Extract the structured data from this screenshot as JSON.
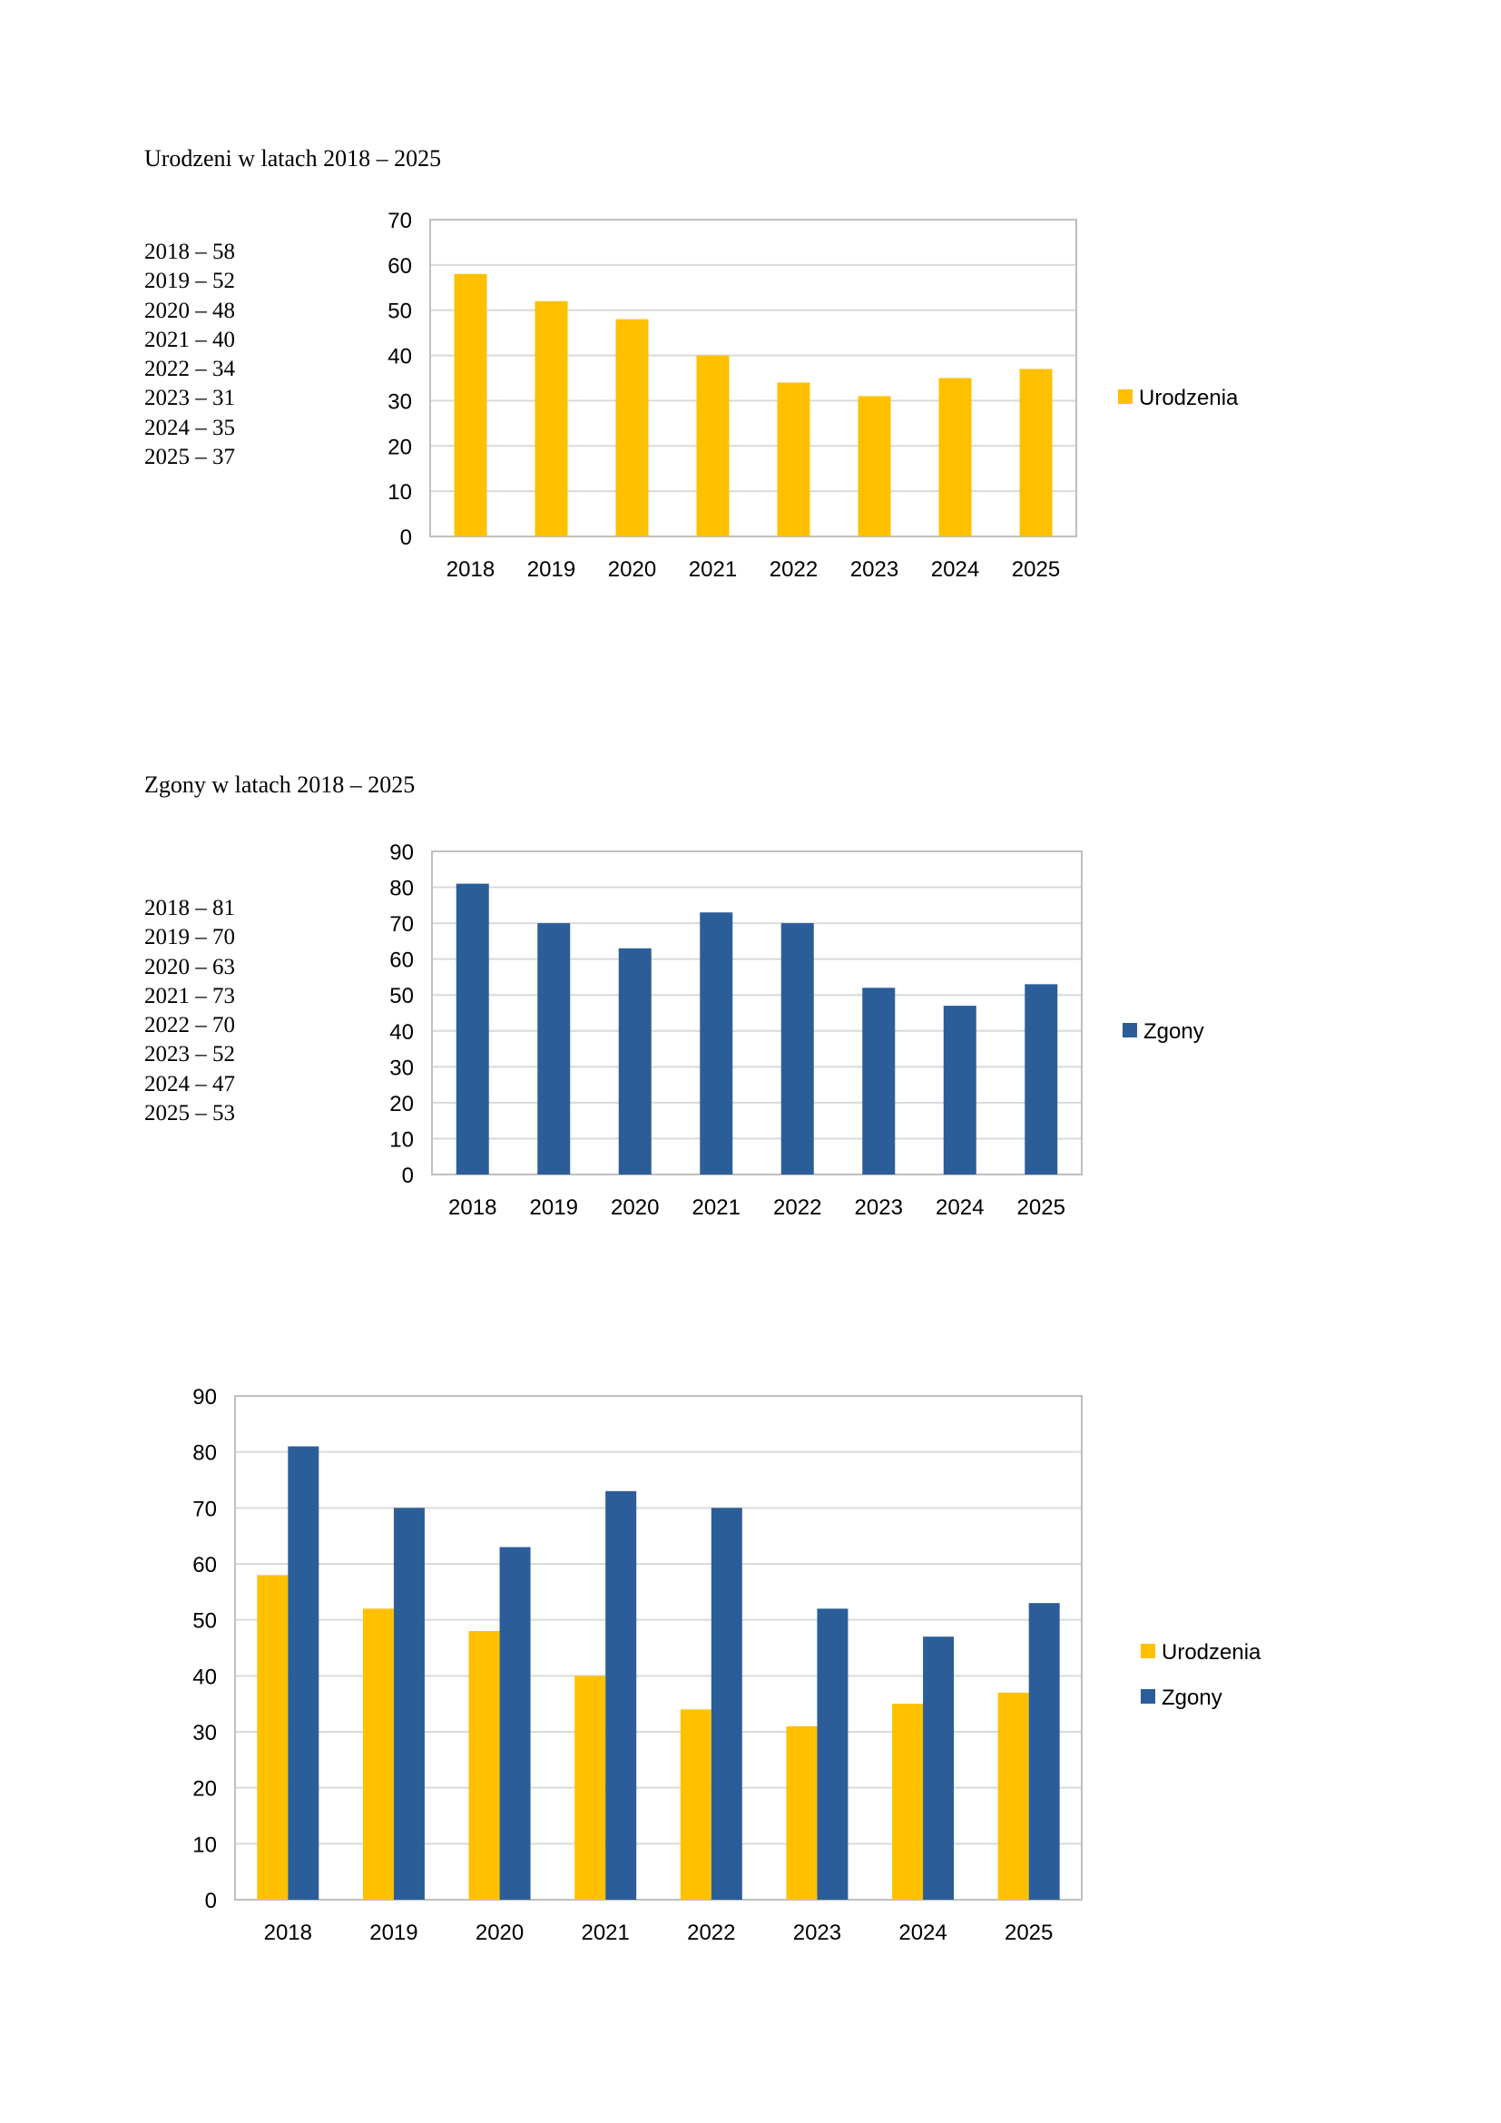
{
  "section1": {
    "title": "Urodzeni w latach 2018 – 2025",
    "list": [
      "2018 – 58",
      "2019 – 52",
      "2020 – 48",
      "2021 – 40",
      "2022 – 34",
      "2023 – 31",
      "2024 – 35",
      "2025 – 37"
    ]
  },
  "section2": {
    "title": "Zgony w latach 2018 – 2025",
    "list": [
      "2018 – 81",
      "2019 – 70",
      "2020 – 63",
      "2021 – 73",
      "2022 – 70",
      "2023 – 52",
      "2024 – 47",
      "2025 – 53"
    ]
  },
  "colors": {
    "urodzenia": "#FFC000",
    "zgony": "#2B5E99",
    "grid": "#D9D9D9",
    "border": "#BFBFBF"
  },
  "chart_data": [
    {
      "type": "bar",
      "title": "",
      "categories": [
        "2018",
        "2019",
        "2020",
        "2021",
        "2022",
        "2023",
        "2024",
        "2025"
      ],
      "series": [
        {
          "name": "Urodzenia",
          "values": [
            58,
            52,
            48,
            40,
            34,
            31,
            35,
            37
          ],
          "color": "#FFC000"
        }
      ],
      "ylim": [
        0,
        70
      ],
      "yticks": [
        0,
        10,
        20,
        30,
        40,
        50,
        60,
        70
      ],
      "legend": "right"
    },
    {
      "type": "bar",
      "title": "",
      "categories": [
        "2018",
        "2019",
        "2020",
        "2021",
        "2022",
        "2023",
        "2024",
        "2025"
      ],
      "series": [
        {
          "name": "Zgony",
          "values": [
            81,
            70,
            63,
            73,
            70,
            52,
            47,
            53
          ],
          "color": "#2B5E99"
        }
      ],
      "ylim": [
        0,
        90
      ],
      "yticks": [
        0,
        10,
        20,
        30,
        40,
        50,
        60,
        70,
        80,
        90
      ],
      "legend": "right"
    },
    {
      "type": "bar",
      "title": "",
      "categories": [
        "2018",
        "2019",
        "2020",
        "2021",
        "2022",
        "2023",
        "2024",
        "2025"
      ],
      "series": [
        {
          "name": "Urodzenia",
          "values": [
            58,
            52,
            48,
            40,
            34,
            31,
            35,
            37
          ],
          "color": "#FFC000"
        },
        {
          "name": "Zgony",
          "values": [
            81,
            70,
            63,
            73,
            70,
            52,
            47,
            53
          ],
          "color": "#2B5E99"
        }
      ],
      "ylim": [
        0,
        90
      ],
      "yticks": [
        0,
        10,
        20,
        30,
        40,
        50,
        60,
        70,
        80,
        90
      ],
      "legend": "right"
    }
  ]
}
